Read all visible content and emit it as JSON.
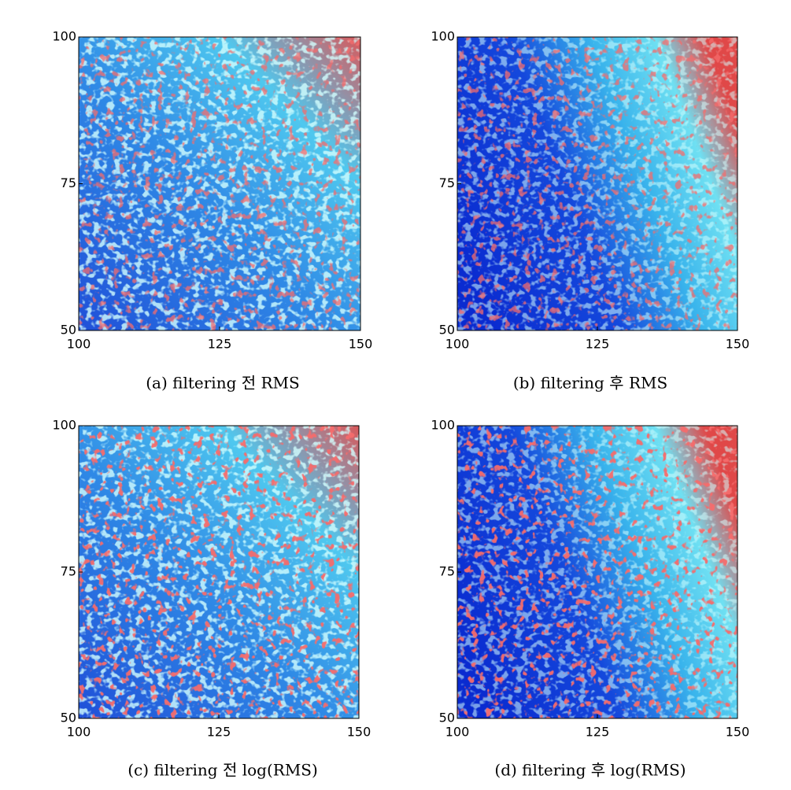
{
  "chart_data": [
    {
      "type": "heatmap",
      "title": "(a) filtering 전 RMS",
      "xlim": [
        100,
        150
      ],
      "ylim": [
        50,
        100
      ],
      "xticks": [
        100,
        125,
        150
      ],
      "yticks": [
        50,
        75,
        100
      ]
    },
    {
      "type": "heatmap",
      "title": "(b) filtering 후 RMS",
      "xlim": [
        100,
        150
      ],
      "ylim": [
        50,
        100
      ],
      "xticks": [
        100,
        125,
        150
      ],
      "yticks": [
        50,
        75,
        100
      ]
    },
    {
      "type": "heatmap",
      "title": "(c) filtering 전 log(RMS)",
      "xlim": [
        100,
        150
      ],
      "ylim": [
        50,
        100
      ],
      "xticks": [
        100,
        125,
        150
      ],
      "yticks": [
        50,
        75,
        100
      ]
    },
    {
      "type": "heatmap",
      "title": "(d) filtering 후 log(RMS)",
      "xlim": [
        100,
        150
      ],
      "ylim": [
        50,
        100
      ],
      "xticks": [
        100,
        125,
        150
      ],
      "yticks": [
        50,
        75,
        100
      ]
    }
  ]
}
